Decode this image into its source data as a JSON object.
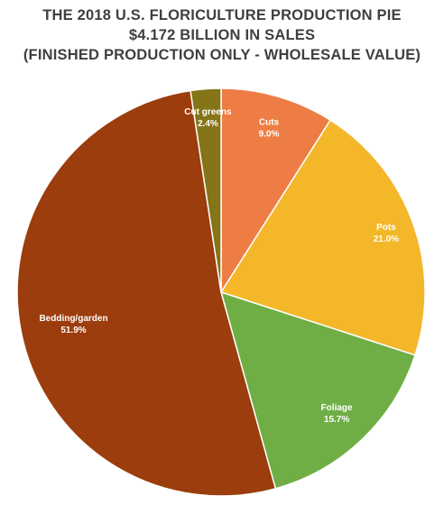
{
  "chart_data": {
    "type": "pie",
    "title": "THE 2018 U.S. FLORICULTURE PRODUCTION PIE",
    "subtitle": "$4.172 BILLION IN SALES",
    "subtitle2": "(FINISHED PRODUCTION ONLY - WHOLESALE VALUE)",
    "categories": [
      "Cuts",
      "Pots",
      "Foliage",
      "Bedding/garden",
      "Cut greens"
    ],
    "values": [
      9.0,
      21.0,
      15.7,
      51.9,
      2.4
    ],
    "value_labels": [
      "9.0%",
      "21.0%",
      "15.7%",
      "51.9%",
      "2.4%"
    ],
    "colors": [
      "#ed7d44",
      "#f4b72a",
      "#6fae45",
      "#9b3d0c",
      "#857418"
    ],
    "start_angle": "12 o'clock",
    "direction": "clockwise",
    "legend": "none"
  }
}
